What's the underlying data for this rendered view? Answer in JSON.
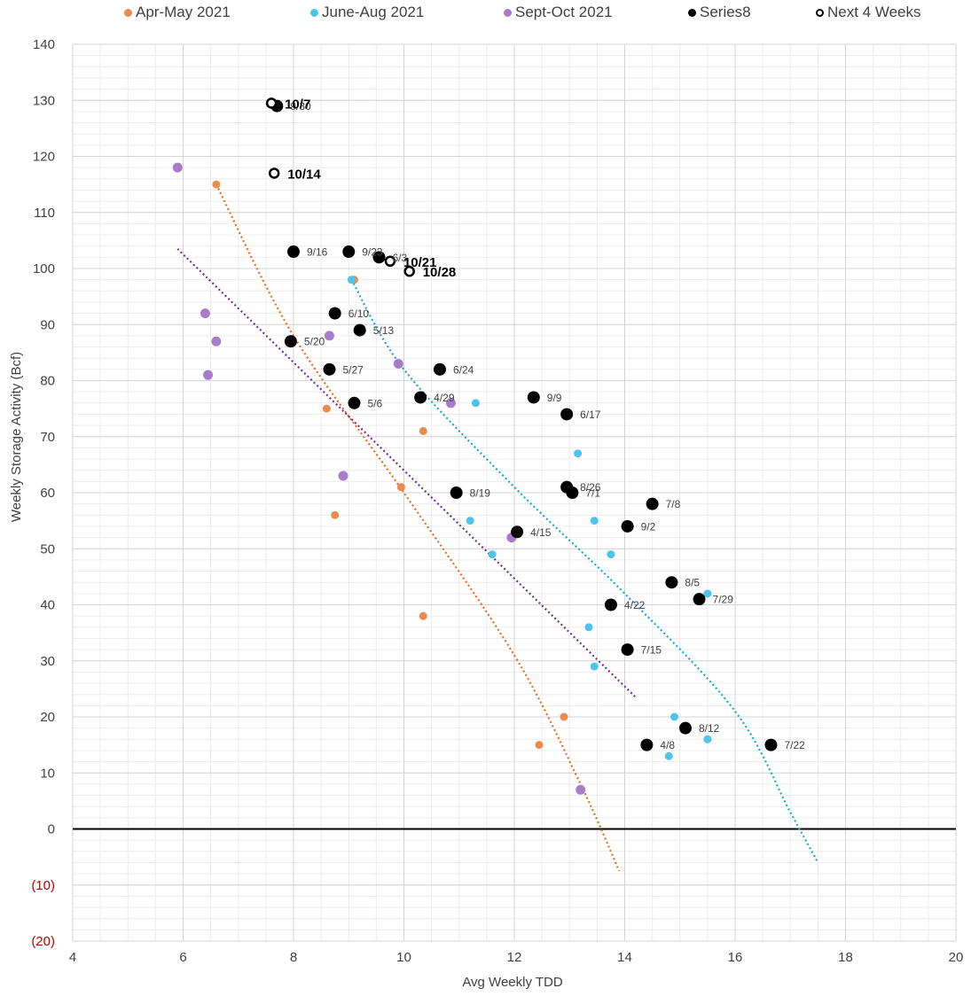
{
  "chart_data": {
    "type": "scatter",
    "title": "",
    "xlabel": "Avg Weekly TDD",
    "ylabel": "Weekly Storage  Activity (Bcf)",
    "xlim": [
      4,
      20
    ],
    "ylim": [
      -20,
      140
    ],
    "x_ticks": [
      4,
      6,
      8,
      10,
      12,
      14,
      16,
      18,
      20
    ],
    "y_ticks": [
      140,
      130,
      120,
      110,
      100,
      90,
      80,
      70,
      60,
      50,
      40,
      30,
      20,
      10,
      0,
      -10,
      -20
    ],
    "y_tick_labels": [
      "140",
      "130",
      "120",
      "110",
      "100",
      "90",
      "80",
      "70",
      "60",
      "50",
      "40",
      "30",
      "20",
      "10",
      "0",
      "(10)",
      "(20)"
    ],
    "negative_label_color": "#c00000",
    "grid": "on",
    "legend_position": "top",
    "series": [
      {
        "name": "Apr-May 2021",
        "color": "#ed8b4c",
        "marker": "small-dot",
        "points": [
          [
            6.6,
            115
          ],
          [
            9.1,
            98
          ],
          [
            8.6,
            75
          ],
          [
            10.35,
            71
          ],
          [
            9.95,
            61
          ],
          [
            8.75,
            56
          ],
          [
            10.35,
            38
          ],
          [
            12.9,
            20
          ],
          [
            12.45,
            15
          ]
        ],
        "trendline": {
          "type": "polynomial",
          "color": "#e07020",
          "points": [
            [
              6.6,
              115
            ],
            [
              8,
              88
            ],
            [
              10,
              60
            ],
            [
              12,
              31
            ],
            [
              13.2,
              8
            ],
            [
              13.9,
              -7.5
            ]
          ]
        }
      },
      {
        "name": "June-Aug 2021",
        "color": "#4cc4ec",
        "marker": "small-dot",
        "points": [
          [
            9.05,
            98
          ],
          [
            11.3,
            76
          ],
          [
            13.15,
            67
          ],
          [
            11.2,
            55
          ],
          [
            13.45,
            55
          ],
          [
            13.75,
            49
          ],
          [
            11.6,
            49
          ],
          [
            15.5,
            42
          ],
          [
            13.35,
            36
          ],
          [
            13.45,
            29
          ],
          [
            14.9,
            20
          ],
          [
            15.5,
            16
          ],
          [
            14.8,
            13
          ]
        ],
        "trendline": {
          "type": "polynomial",
          "color": "#1aa6d6",
          "points": [
            [
              9.05,
              98
            ],
            [
              10,
              82
            ],
            [
              12,
              61
            ],
            [
              14,
              42
            ],
            [
              16,
              21
            ],
            [
              17,
              3
            ],
            [
              17.5,
              -6
            ]
          ]
        }
      },
      {
        "name": "Sept-Oct 2021",
        "color": "#a97cc9",
        "marker": "medium-dot",
        "points": [
          [
            5.9,
            118
          ],
          [
            6.4,
            92
          ],
          [
            6.6,
            87
          ],
          [
            6.45,
            81
          ],
          [
            8.65,
            88
          ],
          [
            9.9,
            83
          ],
          [
            10.85,
            76
          ],
          [
            8.9,
            63
          ],
          [
            11.95,
            52
          ],
          [
            13.2,
            7
          ]
        ],
        "trendline": {
          "type": "linear",
          "color": "#7030a0",
          "points": [
            [
              5.9,
              103.5
            ],
            [
              14.2,
              23.5
            ]
          ]
        }
      },
      {
        "name": "Series8",
        "color": "#000000",
        "marker": "large-dot",
        "points": [
          {
            "x": 7.7,
            "y": 129,
            "label": "9/30"
          },
          {
            "x": 8.0,
            "y": 103,
            "label": "9/16"
          },
          {
            "x": 9.0,
            "y": 103,
            "label": "9/23"
          },
          {
            "x": 9.55,
            "y": 102,
            "label": "6/3"
          },
          {
            "x": 8.75,
            "y": 92,
            "label": "6/10"
          },
          {
            "x": 7.95,
            "y": 87,
            "label": "5/20"
          },
          {
            "x": 9.2,
            "y": 89,
            "label": "5/13"
          },
          {
            "x": 8.65,
            "y": 82,
            "label": "5/27"
          },
          {
            "x": 10.65,
            "y": 82,
            "label": "6/24"
          },
          {
            "x": 9.1,
            "y": 76,
            "label": "5/6"
          },
          {
            "x": 10.3,
            "y": 77,
            "label": "4/29"
          },
          {
            "x": 12.35,
            "y": 77,
            "label": "9/9"
          },
          {
            "x": 12.95,
            "y": 74,
            "label": "6/17"
          },
          {
            "x": 10.95,
            "y": 60,
            "label": "8/19"
          },
          {
            "x": 12.95,
            "y": 61,
            "label": "8/26"
          },
          {
            "x": 13.05,
            "y": 60,
            "label": "7/1"
          },
          {
            "x": 14.5,
            "y": 58,
            "label": "7/8"
          },
          {
            "x": 14.05,
            "y": 54,
            "label": "9/2"
          },
          {
            "x": 12.05,
            "y": 53,
            "label": "4/15"
          },
          {
            "x": 14.85,
            "y": 44,
            "label": "8/5"
          },
          {
            "x": 15.35,
            "y": 41,
            "label": "7/29"
          },
          {
            "x": 13.75,
            "y": 40,
            "label": "4/22"
          },
          {
            "x": 14.05,
            "y": 32,
            "label": "7/15"
          },
          {
            "x": 15.1,
            "y": 18,
            "label": "8/12"
          },
          {
            "x": 14.4,
            "y": 15,
            "label": "4/8"
          },
          {
            "x": 16.65,
            "y": 15,
            "label": "7/22"
          }
        ]
      },
      {
        "name": "Next 4 Weeks",
        "color": "#000000",
        "marker": "open-circle",
        "points": [
          {
            "x": 7.6,
            "y": 129.5,
            "label": "10/7"
          },
          {
            "x": 7.65,
            "y": 117,
            "label": "10/14"
          },
          {
            "x": 9.75,
            "y": 101.3,
            "label": "10/21"
          },
          {
            "x": 10.1,
            "y": 99.5,
            "label": "10/28"
          }
        ]
      }
    ]
  }
}
